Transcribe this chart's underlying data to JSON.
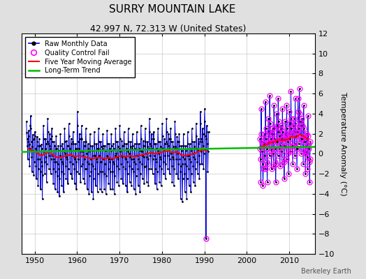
{
  "title": "SURRY MOUNTAIN LAKE",
  "subtitle": "42.997 N, 72.313 W (United States)",
  "ylabel": "Temperature Anomaly (°C)",
  "attribution": "Berkeley Earth",
  "xlim": [
    1947,
    2016
  ],
  "ylim": [
    -10,
    12
  ],
  "yticks": [
    -10,
    -8,
    -6,
    -4,
    -2,
    0,
    2,
    4,
    6,
    8,
    10,
    12
  ],
  "xticks": [
    1950,
    1960,
    1970,
    1980,
    1990,
    2000,
    2010
  ],
  "background_color": "#e0e0e0",
  "plot_bg_color": "#ffffff",
  "raw_color": "#0000dd",
  "qc_color": "#ff00ff",
  "mavg_color": "#ff0000",
  "trend_color": "#00bb00",
  "raw_data": [
    1948.042,
    3.2,
    1948.125,
    2.1,
    1948.208,
    1.5,
    1948.292,
    0.8,
    1948.375,
    -0.5,
    1948.458,
    1.2,
    1948.542,
    2.3,
    1948.625,
    1.8,
    1948.708,
    0.9,
    1948.792,
    -1.2,
    1948.875,
    0.5,
    1948.958,
    2.8,
    1949.042,
    3.8,
    1949.125,
    2.5,
    1949.208,
    1.2,
    1949.292,
    -0.3,
    1949.375,
    -1.8,
    1949.458,
    0.7,
    1949.542,
    1.9,
    1949.625,
    1.4,
    1949.708,
    0.2,
    1949.792,
    -2.1,
    1949.875,
    -0.8,
    1949.958,
    1.5,
    1950.042,
    2.2,
    1950.125,
    1.8,
    1950.208,
    0.5,
    1950.292,
    -1.2,
    1950.375,
    -2.5,
    1950.458,
    0.3,
    1950.542,
    1.7,
    1950.625,
    1.2,
    1950.708,
    -0.5,
    1950.792,
    -3.2,
    1950.875,
    -1.5,
    1950.958,
    0.8,
    1951.042,
    1.5,
    1951.125,
    0.8,
    1951.208,
    -0.5,
    1951.292,
    -1.8,
    1951.375,
    -3.5,
    1951.458,
    -0.8,
    1951.542,
    0.9,
    1951.625,
    0.5,
    1951.708,
    -1.2,
    1951.792,
    -4.5,
    1951.875,
    -2.1,
    1951.958,
    0.2,
    1952.042,
    2.8,
    1952.125,
    1.5,
    1952.208,
    0.2,
    1952.292,
    -0.8,
    1952.375,
    -2.0,
    1952.458,
    0.5,
    1952.542,
    1.5,
    1952.625,
    1.0,
    1952.708,
    -0.3,
    1952.792,
    -2.8,
    1952.875,
    -1.0,
    1952.958,
    1.2,
    1953.042,
    3.5,
    1953.125,
    2.2,
    1953.208,
    1.0,
    1953.292,
    -0.2,
    1953.375,
    -1.5,
    1953.458,
    0.8,
    1953.542,
    2.0,
    1953.625,
    1.5,
    1953.708,
    0.5,
    1953.792,
    -2.0,
    1953.875,
    -0.5,
    1953.958,
    1.8,
    1954.042,
    2.5,
    1954.125,
    1.2,
    1954.208,
    -0.2,
    1954.292,
    -1.5,
    1954.375,
    -3.0,
    1954.458,
    -0.5,
    1954.542,
    1.2,
    1954.625,
    0.8,
    1954.708,
    -0.8,
    1954.792,
    -3.5,
    1954.875,
    -1.8,
    1954.958,
    0.5,
    1955.042,
    1.8,
    1955.125,
    0.5,
    1955.208,
    -0.8,
    1955.292,
    -2.2,
    1955.375,
    -3.8,
    1955.458,
    -1.0,
    1955.542,
    0.8,
    1955.625,
    0.3,
    1955.708,
    -1.5,
    1955.792,
    -4.2,
    1955.875,
    -2.5,
    1955.958,
    -0.2,
    1956.042,
    2.0,
    1956.125,
    0.8,
    1956.208,
    -0.5,
    1956.292,
    -1.8,
    1956.375,
    -3.2,
    1956.458,
    -0.8,
    1956.542,
    1.0,
    1956.625,
    0.5,
    1956.708,
    -1.0,
    1956.792,
    -3.8,
    1956.875,
    -2.0,
    1956.958,
    0.2,
    1957.042,
    2.5,
    1957.125,
    1.2,
    1957.208,
    0.0,
    1957.292,
    -1.2,
    1957.375,
    -2.5,
    1957.458,
    -0.3,
    1957.542,
    1.3,
    1957.625,
    0.8,
    1957.708,
    -0.5,
    1957.792,
    -3.0,
    1957.875,
    -1.5,
    1957.958,
    0.8,
    1958.042,
    3.0,
    1958.125,
    1.8,
    1958.208,
    0.5,
    1958.292,
    -0.8,
    1958.375,
    -2.0,
    1958.458,
    0.3,
    1958.542,
    1.5,
    1958.625,
    1.0,
    1958.708,
    -0.2,
    1958.792,
    -2.5,
    1958.875,
    -1.0,
    1958.958,
    1.2,
    1959.042,
    2.2,
    1959.125,
    1.0,
    1959.208,
    -0.3,
    1959.292,
    -1.5,
    1959.375,
    -3.0,
    1959.458,
    -0.5,
    1959.542,
    1.0,
    1959.625,
    0.5,
    1959.708,
    -0.8,
    1959.792,
    -3.5,
    1959.875,
    -1.8,
    1959.958,
    0.5,
    1960.042,
    4.2,
    1960.125,
    2.8,
    1960.208,
    1.2,
    1960.292,
    -0.5,
    1960.375,
    -2.0,
    1960.458,
    0.5,
    1960.542,
    2.0,
    1960.625,
    1.5,
    1960.708,
    0.2,
    1960.792,
    -2.8,
    1960.875,
    -1.2,
    1960.958,
    1.5,
    1961.042,
    2.8,
    1961.125,
    1.5,
    1961.208,
    0.2,
    1961.292,
    -1.0,
    1961.375,
    -2.5,
    1961.458,
    -0.2,
    1961.542,
    1.2,
    1961.625,
    0.8,
    1961.708,
    -0.5,
    1961.792,
    -3.0,
    1961.875,
    -1.5,
    1961.958,
    0.8,
    1962.042,
    2.5,
    1962.125,
    1.2,
    1962.208,
    0.0,
    1962.292,
    -1.5,
    1962.375,
    -3.5,
    1962.458,
    -0.8,
    1962.542,
    1.0,
    1962.625,
    0.5,
    1962.708,
    -1.0,
    1962.792,
    -4.0,
    1962.875,
    -2.2,
    1962.958,
    0.2,
    1963.042,
    2.0,
    1963.125,
    0.8,
    1963.208,
    -0.5,
    1963.292,
    -1.8,
    1963.375,
    -3.8,
    1963.458,
    -1.0,
    1963.542,
    0.8,
    1963.625,
    0.3,
    1963.708,
    -1.2,
    1963.792,
    -4.5,
    1963.875,
    -2.5,
    1963.958,
    -0.2,
    1964.042,
    2.2,
    1964.125,
    1.0,
    1964.208,
    -0.2,
    1964.292,
    -1.5,
    1964.375,
    -3.2,
    1964.458,
    -0.5,
    1964.542,
    1.0,
    1964.625,
    0.5,
    1964.708,
    -0.8,
    1964.792,
    -3.8,
    1964.875,
    -2.0,
    1964.958,
    0.5,
    1965.042,
    2.5,
    1965.125,
    1.2,
    1965.208,
    -0.2,
    1965.292,
    -1.8,
    1965.375,
    -3.5,
    1965.458,
    -0.8,
    1965.542,
    1.2,
    1965.625,
    0.7,
    1965.708,
    -0.8,
    1965.792,
    -3.8,
    1965.875,
    -1.8,
    1965.958,
    0.5,
    1966.042,
    2.0,
    1966.125,
    0.8,
    1966.208,
    -0.5,
    1966.292,
    -2.0,
    1966.375,
    -3.5,
    1966.458,
    -1.0,
    1966.542,
    0.8,
    1966.625,
    0.3,
    1966.708,
    -1.0,
    1966.792,
    -4.0,
    1966.875,
    -2.2,
    1966.958,
    -0.2,
    1967.042,
    2.3,
    1967.125,
    1.0,
    1967.208,
    -0.3,
    1967.292,
    -1.5,
    1967.375,
    -3.0,
    1967.458,
    -0.5,
    1967.542,
    1.0,
    1967.625,
    0.5,
    1967.708,
    -0.8,
    1967.792,
    -3.5,
    1967.875,
    -1.8,
    1967.958,
    0.3,
    1968.042,
    2.0,
    1968.125,
    0.8,
    1968.208,
    -0.5,
    1968.292,
    -1.8,
    1968.375,
    -3.5,
    1968.458,
    -0.8,
    1968.542,
    1.0,
    1968.625,
    0.5,
    1968.708,
    -1.0,
    1968.792,
    -4.0,
    1968.875,
    -2.2,
    1968.958,
    -0.2,
    1969.042,
    2.5,
    1969.125,
    1.2,
    1969.208,
    0.0,
    1969.292,
    -1.2,
    1969.375,
    -2.8,
    1969.458,
    -0.3,
    1969.542,
    1.2,
    1969.625,
    0.7,
    1969.708,
    -0.5,
    1969.792,
    -3.2,
    1969.875,
    -1.5,
    1969.958,
    0.5,
    1970.042,
    2.8,
    1970.125,
    1.5,
    1970.208,
    0.2,
    1970.292,
    -1.0,
    1970.375,
    -2.5,
    1970.458,
    -0.2,
    1970.542,
    1.3,
    1970.625,
    0.8,
    1970.708,
    -0.3,
    1970.792,
    -3.0,
    1970.875,
    -1.3,
    1970.958,
    0.8,
    1971.042,
    2.2,
    1971.125,
    1.0,
    1971.208,
    -0.3,
    1971.292,
    -1.5,
    1971.375,
    -3.2,
    1971.458,
    -0.5,
    1971.542,
    1.0,
    1971.625,
    0.5,
    1971.708,
    -0.8,
    1971.792,
    -3.8,
    1971.875,
    -2.0,
    1971.958,
    0.2,
    1972.042,
    2.5,
    1972.125,
    1.2,
    1972.208,
    0.0,
    1972.292,
    -1.2,
    1972.375,
    -2.8,
    1972.458,
    -0.3,
    1972.542,
    1.2,
    1972.625,
    0.7,
    1972.708,
    -0.5,
    1972.792,
    -3.2,
    1972.875,
    -1.5,
    1972.958,
    0.5,
    1973.042,
    2.0,
    1973.125,
    0.8,
    1973.208,
    -0.5,
    1973.292,
    -1.8,
    1973.375,
    -3.5,
    1973.458,
    -0.8,
    1973.542,
    1.0,
    1973.625,
    0.5,
    1973.708,
    -1.0,
    1973.792,
    -4.0,
    1973.875,
    -2.2,
    1973.958,
    -0.2,
    1974.042,
    2.2,
    1974.125,
    1.0,
    1974.208,
    -0.2,
    1974.292,
    -1.5,
    1974.375,
    -3.2,
    1974.458,
    -0.5,
    1974.542,
    1.0,
    1974.625,
    0.5,
    1974.708,
    -0.8,
    1974.792,
    -3.8,
    1974.875,
    -2.0,
    1974.958,
    0.3,
    1975.042,
    2.8,
    1975.125,
    1.5,
    1975.208,
    0.2,
    1975.292,
    -1.0,
    1975.375,
    -2.5,
    1975.458,
    -0.2,
    1975.542,
    1.3,
    1975.625,
    0.8,
    1975.708,
    -0.3,
    1975.792,
    -3.0,
    1975.875,
    -1.3,
    1975.958,
    0.8,
    1976.042,
    2.5,
    1976.125,
    1.2,
    1976.208,
    0.0,
    1976.292,
    -1.2,
    1976.375,
    -2.8,
    1976.458,
    -0.3,
    1976.542,
    1.2,
    1976.625,
    0.7,
    1976.708,
    -0.5,
    1976.792,
    -3.2,
    1976.875,
    -1.5,
    1976.958,
    0.5,
    1977.042,
    3.5,
    1977.125,
    2.2,
    1977.208,
    1.0,
    1977.292,
    -0.2,
    1977.375,
    -1.5,
    1977.458,
    0.8,
    1977.542,
    2.0,
    1977.625,
    1.5,
    1977.708,
    0.5,
    1977.792,
    -2.0,
    1977.875,
    -0.5,
    1977.958,
    1.5,
    1978.042,
    2.2,
    1978.125,
    1.0,
    1978.208,
    -0.2,
    1978.292,
    -1.5,
    1978.375,
    -3.0,
    1978.458,
    -0.5,
    1978.542,
    1.0,
    1978.625,
    0.5,
    1978.708,
    -0.8,
    1978.792,
    -3.5,
    1978.875,
    -1.8,
    1978.958,
    0.3,
    1979.042,
    2.5,
    1979.125,
    1.2,
    1979.208,
    0.0,
    1979.292,
    -1.2,
    1979.375,
    -2.8,
    1979.458,
    -0.3,
    1979.542,
    1.2,
    1979.625,
    0.7,
    1979.708,
    -0.5,
    1979.792,
    -3.2,
    1979.875,
    -1.5,
    1979.958,
    0.5,
    1980.042,
    3.0,
    1980.125,
    1.8,
    1980.208,
    0.5,
    1980.292,
    -0.8,
    1980.375,
    -2.0,
    1980.458,
    0.3,
    1980.542,
    1.5,
    1980.625,
    1.0,
    1980.708,
    -0.2,
    1980.792,
    -2.5,
    1980.875,
    -1.0,
    1980.958,
    1.2,
    1981.042,
    3.5,
    1981.125,
    2.2,
    1981.208,
    1.0,
    1981.292,
    -0.2,
    1981.375,
    -1.5,
    1981.458,
    0.8,
    1981.542,
    2.0,
    1981.625,
    1.5,
    1981.708,
    0.5,
    1981.792,
    -2.0,
    1981.875,
    -0.5,
    1981.958,
    1.5,
    1982.042,
    2.5,
    1982.125,
    1.2,
    1982.208,
    0.0,
    1982.292,
    -1.2,
    1982.375,
    -2.8,
    1982.458,
    -0.3,
    1982.542,
    1.2,
    1982.625,
    0.7,
    1982.708,
    -0.5,
    1982.792,
    -3.2,
    1982.875,
    -1.5,
    1982.958,
    0.5,
    1983.042,
    3.2,
    1983.125,
    2.0,
    1983.208,
    0.7,
    1983.292,
    -0.5,
    1983.375,
    -2.0,
    1983.458,
    0.5,
    1983.542,
    1.7,
    1983.625,
    1.2,
    1983.708,
    0.0,
    1983.792,
    -2.5,
    1983.875,
    -1.0,
    1983.958,
    1.2,
    1984.042,
    2.0,
    1984.125,
    0.8,
    1984.208,
    -0.5,
    1984.292,
    -1.8,
    1984.375,
    -4.5,
    1984.458,
    -1.2,
    1984.542,
    0.8,
    1984.625,
    0.3,
    1984.708,
    -1.0,
    1984.792,
    -4.8,
    1984.875,
    -2.5,
    1984.958,
    -0.3,
    1985.042,
    2.0,
    1985.125,
    0.8,
    1985.208,
    -0.5,
    1985.292,
    -2.0,
    1985.375,
    -3.8,
    1985.458,
    -1.0,
    1985.542,
    0.8,
    1985.625,
    0.3,
    1985.708,
    -1.2,
    1985.792,
    -4.5,
    1985.875,
    -2.5,
    1985.958,
    -0.2,
    1986.042,
    2.2,
    1986.125,
    1.0,
    1986.208,
    -0.2,
    1986.292,
    -1.5,
    1986.375,
    -3.2,
    1986.458,
    -0.5,
    1986.542,
    1.0,
    1986.625,
    0.5,
    1986.708,
    -0.8,
    1986.792,
    -3.8,
    1986.875,
    -2.0,
    1986.958,
    0.3,
    1987.042,
    2.5,
    1987.125,
    1.2,
    1987.208,
    0.0,
    1987.292,
    -1.2,
    1987.375,
    -2.8,
    1987.458,
    -0.3,
    1987.542,
    1.2,
    1987.625,
    0.7,
    1987.708,
    -0.5,
    1987.792,
    -3.2,
    1987.875,
    -1.5,
    1987.958,
    0.5,
    1988.042,
    3.0,
    1988.125,
    1.8,
    1988.208,
    0.5,
    1988.292,
    -0.8,
    1988.375,
    -2.0,
    1988.458,
    0.3,
    1988.542,
    1.5,
    1988.625,
    1.0,
    1988.708,
    -0.2,
    1988.792,
    -2.5,
    1988.875,
    -1.0,
    1988.958,
    1.2,
    1989.042,
    4.2,
    1989.125,
    3.0,
    1989.208,
    1.5,
    1989.292,
    0.2,
    1989.375,
    -1.0,
    1989.458,
    1.2,
    1989.542,
    2.5,
    1989.625,
    2.0,
    1989.708,
    0.8,
    1989.792,
    -1.5,
    1989.875,
    0.0,
    1989.958,
    2.0,
    1990.042,
    4.5,
    1990.125,
    3.2,
    1990.208,
    1.8,
    1990.292,
    0.5,
    1990.375,
    -8.5,
    1990.458,
    1.5,
    1990.542,
    2.8,
    1990.625,
    2.2,
    1990.708,
    1.0,
    1990.792,
    -1.8,
    1990.875,
    0.2,
    1990.958,
    2.2,
    2003.042,
    1.5,
    2003.125,
    0.5,
    2003.208,
    -0.5,
    2003.292,
    -2.8,
    2003.375,
    4.5,
    2003.458,
    2.0,
    2003.542,
    1.2,
    2003.625,
    0.2,
    2003.708,
    -1.0,
    2003.792,
    -3.2,
    2003.875,
    -1.5,
    2003.958,
    1.0,
    2004.042,
    2.0,
    2004.125,
    1.0,
    2004.208,
    -0.2,
    2004.292,
    -1.5,
    2004.375,
    5.2,
    2004.458,
    2.5,
    2004.542,
    1.5,
    2004.625,
    0.5,
    2004.708,
    -0.8,
    2004.792,
    -2.8,
    2004.875,
    -1.0,
    2004.958,
    1.2,
    2005.042,
    3.5,
    2005.125,
    2.2,
    2005.208,
    1.0,
    2005.292,
    -0.2,
    2005.375,
    5.8,
    2005.458,
    3.0,
    2005.542,
    2.0,
    2005.625,
    1.5,
    2005.708,
    0.3,
    2005.792,
    -1.5,
    2005.875,
    0.5,
    2005.958,
    2.0,
    2006.042,
    2.5,
    2006.125,
    1.2,
    2006.208,
    0.0,
    2006.292,
    -1.2,
    2006.375,
    4.8,
    2006.458,
    2.5,
    2006.542,
    1.5,
    2006.625,
    0.5,
    2006.708,
    -0.8,
    2006.792,
    -2.8,
    2006.875,
    -1.0,
    2006.958,
    1.2,
    2007.042,
    4.0,
    2007.125,
    2.8,
    2007.208,
    1.2,
    2007.292,
    -0.2,
    2007.375,
    5.5,
    2007.458,
    3.2,
    2007.542,
    2.2,
    2007.625,
    1.8,
    2007.708,
    0.5,
    2007.792,
    -1.2,
    2007.875,
    0.8,
    2007.958,
    2.5,
    2008.042,
    2.8,
    2008.125,
    1.5,
    2008.208,
    0.2,
    2008.292,
    -1.0,
    2008.375,
    4.5,
    2008.458,
    2.2,
    2008.542,
    1.5,
    2008.625,
    0.8,
    2008.708,
    -0.5,
    2008.792,
    -2.5,
    2008.875,
    -0.8,
    2008.958,
    1.5,
    2009.042,
    3.2,
    2009.125,
    2.0,
    2009.208,
    0.8,
    2009.292,
    -0.5,
    2009.375,
    4.8,
    2009.458,
    2.5,
    2009.542,
    1.8,
    2009.625,
    1.2,
    2009.708,
    0.0,
    2009.792,
    -2.0,
    2009.875,
    0.2,
    2009.958,
    2.0,
    2010.042,
    4.2,
    2010.125,
    3.0,
    2010.208,
    1.5,
    2010.292,
    0.2,
    2010.375,
    6.2,
    2010.458,
    3.5,
    2010.542,
    2.5,
    2010.625,
    2.0,
    2010.708,
    0.8,
    2010.792,
    -1.0,
    2010.875,
    0.8,
    2010.958,
    2.8,
    2011.042,
    3.5,
    2011.125,
    2.2,
    2011.208,
    1.0,
    2011.292,
    -0.2,
    2011.375,
    5.5,
    2011.458,
    3.0,
    2011.542,
    2.2,
    2011.625,
    1.8,
    2011.708,
    0.5,
    2011.792,
    -1.5,
    2011.875,
    0.5,
    2011.958,
    2.2,
    2012.042,
    5.5,
    2012.125,
    4.2,
    2012.208,
    2.5,
    2012.292,
    1.0,
    2012.375,
    6.5,
    2012.458,
    4.0,
    2012.542,
    3.2,
    2012.625,
    2.8,
    2012.708,
    1.5,
    2012.792,
    0.0,
    2012.875,
    1.5,
    2012.958,
    3.5,
    2013.042,
    2.8,
    2013.125,
    1.5,
    2013.208,
    0.2,
    2013.292,
    -1.0,
    2013.375,
    4.8,
    2013.458,
    2.5,
    2013.542,
    1.8,
    2013.625,
    1.2,
    2013.708,
    0.0,
    2013.792,
    -2.0,
    2013.875,
    0.2,
    2013.958,
    2.0,
    2014.042,
    2.0,
    2014.125,
    0.8,
    2014.208,
    -0.3,
    2014.292,
    -1.5,
    2014.375,
    3.8,
    2014.458,
    1.8,
    2014.542,
    1.0,
    2014.625,
    0.5,
    2014.708,
    -0.8,
    2014.792,
    -2.8,
    2014.875,
    -0.5,
    2014.958,
    1.2
  ],
  "qc_fail_indices_all": true,
  "qc_fail_2003_2014": true,
  "qc_fail_1990": [
    [
      1990.375,
      -8.5
    ]
  ],
  "moving_avg_1948_1990": [
    [
      1948.5,
      0.5
    ],
    [
      1949.5,
      0.3
    ],
    [
      1950.5,
      0.1
    ],
    [
      1951.5,
      -0.2
    ],
    [
      1952.5,
      0.0
    ],
    [
      1953.5,
      0.2
    ],
    [
      1954.5,
      -0.2
    ],
    [
      1955.5,
      -0.4
    ],
    [
      1956.5,
      -0.3
    ],
    [
      1957.5,
      -0.2
    ],
    [
      1958.5,
      -0.1
    ],
    [
      1959.5,
      -0.3
    ],
    [
      1960.5,
      -0.2
    ],
    [
      1961.5,
      -0.3
    ],
    [
      1962.5,
      -0.4
    ],
    [
      1963.5,
      -0.5
    ],
    [
      1964.5,
      -0.4
    ],
    [
      1965.5,
      -0.4
    ],
    [
      1966.5,
      -0.5
    ],
    [
      1967.5,
      -0.4
    ],
    [
      1968.5,
      -0.5
    ],
    [
      1969.5,
      -0.3
    ],
    [
      1970.5,
      -0.2
    ],
    [
      1971.5,
      -0.3
    ],
    [
      1972.5,
      -0.2
    ],
    [
      1973.5,
      -0.3
    ],
    [
      1974.5,
      -0.2
    ],
    [
      1975.5,
      -0.1
    ],
    [
      1976.5,
      0.0
    ],
    [
      1977.5,
      0.1
    ],
    [
      1978.5,
      0.0
    ],
    [
      1979.5,
      0.1
    ],
    [
      1980.5,
      0.2
    ],
    [
      1981.5,
      0.3
    ],
    [
      1982.5,
      0.1
    ],
    [
      1983.5,
      0.2
    ],
    [
      1984.5,
      -0.1
    ],
    [
      1985.5,
      -0.2
    ],
    [
      1986.5,
      -0.1
    ],
    [
      1987.5,
      0.0
    ],
    [
      1988.5,
      0.2
    ],
    [
      1989.5,
      0.4
    ],
    [
      1990.5,
      0.3
    ]
  ],
  "moving_avg_2003_2014": [
    [
      2003.5,
      0.7
    ],
    [
      2004.5,
      0.9
    ],
    [
      2005.5,
      1.1
    ],
    [
      2006.5,
      1.2
    ],
    [
      2007.5,
      1.4
    ],
    [
      2008.5,
      1.3
    ],
    [
      2009.5,
      1.4
    ],
    [
      2010.5,
      1.7
    ],
    [
      2011.5,
      1.6
    ],
    [
      2012.5,
      1.9
    ],
    [
      2013.5,
      1.7
    ],
    [
      2014.5,
      1.4
    ]
  ],
  "trend_line": [
    [
      1947,
      0.18
    ],
    [
      2016,
      0.68
    ]
  ],
  "legend_labels": [
    "Raw Monthly Data",
    "Quality Control Fail",
    "Five Year Moving Average",
    "Long-Term Trend"
  ],
  "title_fontsize": 11,
  "subtitle_fontsize": 9,
  "tick_fontsize": 8,
  "ylabel_fontsize": 8
}
